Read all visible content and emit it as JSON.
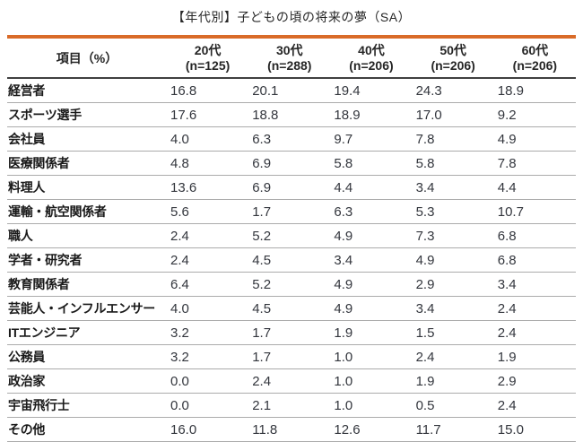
{
  "colors": {
    "accent": "#d96b28",
    "header_rule": "#404040",
    "row_rule": "#ababab",
    "title_text": "#262626",
    "value_text": "#33363d"
  },
  "chart_data": {
    "type": "table",
    "title": "【年代別】子どもの頃の将来の夢（SA）",
    "row_header": "項目（%）",
    "legend_position": "none",
    "grid": "horizontal-rules",
    "columns": [
      {
        "label": "20代",
        "n_label": "(n=125)"
      },
      {
        "label": "30代",
        "n_label": "(n=288)"
      },
      {
        "label": "40代",
        "n_label": "(n=206)"
      },
      {
        "label": "50代",
        "n_label": "(n=206)"
      },
      {
        "label": "60代",
        "n_label": "(n=206)"
      }
    ],
    "rows": [
      {
        "label": "経営者",
        "values": [
          16.8,
          20.1,
          19.4,
          24.3,
          18.9
        ]
      },
      {
        "label": "スポーツ選手",
        "values": [
          17.6,
          18.8,
          18.9,
          17.0,
          9.2
        ]
      },
      {
        "label": "会社員",
        "values": [
          4.0,
          6.3,
          9.7,
          7.8,
          4.9
        ]
      },
      {
        "label": "医療関係者",
        "values": [
          4.8,
          6.9,
          5.8,
          5.8,
          7.8
        ]
      },
      {
        "label": "料理人",
        "values": [
          13.6,
          6.9,
          4.4,
          3.4,
          4.4
        ]
      },
      {
        "label": "運輸・航空関係者",
        "values": [
          5.6,
          1.7,
          6.3,
          5.3,
          10.7
        ]
      },
      {
        "label": "職人",
        "values": [
          2.4,
          5.2,
          4.9,
          7.3,
          6.8
        ]
      },
      {
        "label": "学者・研究者",
        "values": [
          2.4,
          4.5,
          3.4,
          4.9,
          6.8
        ]
      },
      {
        "label": "教育関係者",
        "values": [
          6.4,
          5.2,
          4.9,
          2.9,
          3.4
        ]
      },
      {
        "label": "芸能人・インフルエンサー",
        "values": [
          4.0,
          4.5,
          4.9,
          3.4,
          2.4
        ]
      },
      {
        "label": "ITエンジニア",
        "values": [
          3.2,
          1.7,
          1.9,
          1.5,
          2.4
        ]
      },
      {
        "label": "公務員",
        "values": [
          3.2,
          1.7,
          1.0,
          2.4,
          1.9
        ]
      },
      {
        "label": "政治家",
        "values": [
          0.0,
          2.4,
          1.0,
          1.9,
          2.9
        ]
      },
      {
        "label": "宇宙飛行士",
        "values": [
          0.0,
          2.1,
          1.0,
          0.5,
          2.4
        ]
      },
      {
        "label": "その他",
        "values": [
          16.0,
          11.8,
          12.6,
          11.7,
          15.0
        ]
      }
    ]
  }
}
